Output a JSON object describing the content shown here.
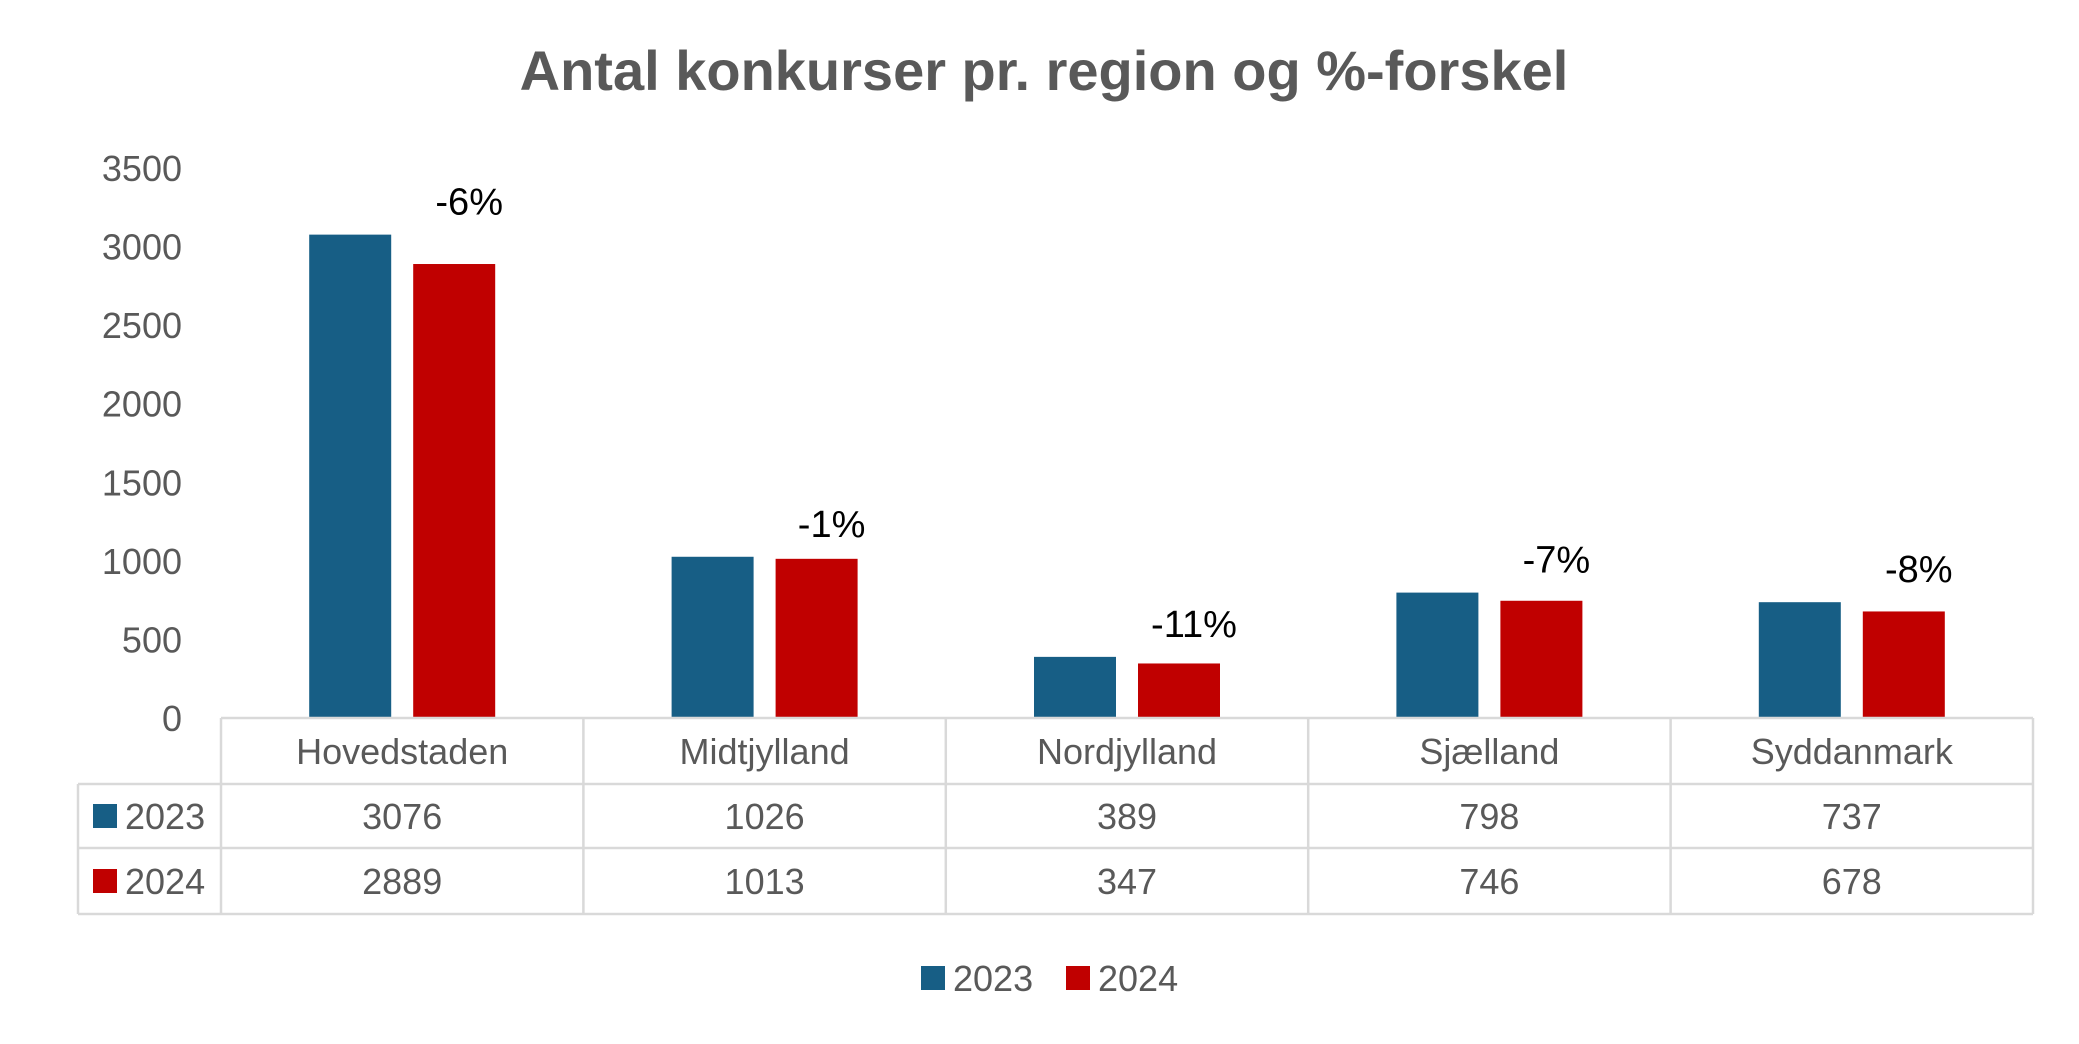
{
  "chart_data": {
    "type": "bar",
    "title": "Antal konkurser pr. region og %-forskel",
    "categories": [
      "Hovedstaden",
      "Midtjylland",
      "Nordjylland",
      "Sjælland",
      "Syddanmark"
    ],
    "series": [
      {
        "name": "2023",
        "color": "#175E85",
        "values": [
          3076,
          1026,
          389,
          798,
          737
        ]
      },
      {
        "name": "2024",
        "color": "#C00000",
        "values": [
          2889,
          1013,
          347,
          746,
          678
        ]
      }
    ],
    "annotations": [
      "-6%",
      "-1%",
      "-11%",
      "-7%",
      "-8%"
    ],
    "y_ticks": [
      "0",
      "500",
      "1000",
      "1500",
      "2000",
      "2500",
      "3000",
      "3500"
    ],
    "ylim": [
      0,
      3500
    ],
    "grid": false,
    "data_table": true,
    "legend_position": "bottom"
  }
}
